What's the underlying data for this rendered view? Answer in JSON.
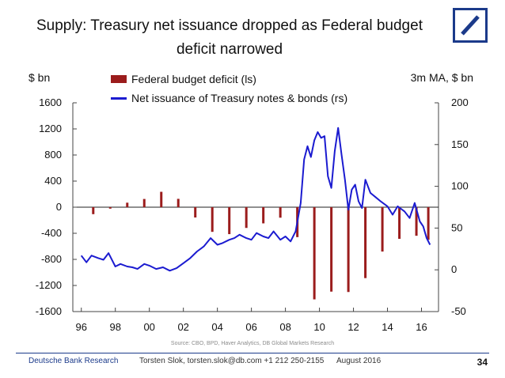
{
  "title_line1": "Supply: Treasury net issuance dropped as Federal budget",
  "title_line2": "deficit  narrowed",
  "left_axis_label": "$ bn",
  "right_axis_label": "3m MA, $ bn",
  "colors": {
    "bar": "#9b1c1c",
    "line": "#1b1bd0",
    "brand": "#1b3a8a"
  },
  "chart_data": {
    "type": "bar+line",
    "title": "Supply: Treasury net issuance dropped as Federal budget deficit narrowed",
    "xlabel": "",
    "x_ticks": [
      "96",
      "98",
      "00",
      "02",
      "04",
      "06",
      "08",
      "10",
      "12",
      "14",
      "16"
    ],
    "x_range": [
      1995.5,
      2017.0
    ],
    "left_axis": {
      "label": "$ bn",
      "range": [
        -1600,
        1600
      ],
      "ticks": [
        -1600,
        -1200,
        -800,
        -400,
        0,
        400,
        800,
        1200,
        1600
      ]
    },
    "right_axis": {
      "label": "3m MA, $ bn",
      "range": [
        -50,
        200
      ],
      "ticks": [
        -50,
        0,
        50,
        100,
        150,
        200
      ]
    },
    "legend": [
      "Federal budget deficit (ls)",
      "Net issuance of Treasury notes & bonds (rs)"
    ],
    "series": [
      {
        "name": "Federal budget deficit (ls)",
        "axis": "left",
        "type": "bar",
        "x": [
          1996.7,
          1997.7,
          1998.7,
          1999.7,
          2000.7,
          2001.7,
          2002.7,
          2003.7,
          2004.7,
          2005.7,
          2006.7,
          2007.7,
          2008.7,
          2009.7,
          2010.7,
          2011.7,
          2012.7,
          2013.7,
          2014.7,
          2015.7,
          2016.4
        ],
        "values": [
          -107,
          -22,
          69,
          126,
          236,
          128,
          -158,
          -378,
          -413,
          -318,
          -248,
          -161,
          -459,
          -1413,
          -1294,
          -1300,
          -1087,
          -680,
          -485,
          -438,
          -500
        ]
      },
      {
        "name": "Net issuance of Treasury notes & bonds (rs)",
        "axis": "right",
        "type": "line",
        "x": [
          1996.0,
          1996.3,
          1996.6,
          1997.0,
          1997.3,
          1997.6,
          1998.0,
          1998.3,
          1998.7,
          1999.0,
          1999.3,
          1999.7,
          2000.0,
          2000.4,
          2000.8,
          2001.2,
          2001.6,
          2002.0,
          2002.4,
          2002.8,
          2003.2,
          2003.6,
          2004.0,
          2004.3,
          2004.7,
          2005.0,
          2005.3,
          2005.7,
          2006.0,
          2006.3,
          2006.7,
          2007.0,
          2007.3,
          2007.7,
          2008.0,
          2008.3,
          2008.6,
          2008.9,
          2009.1,
          2009.3,
          2009.5,
          2009.7,
          2009.9,
          2010.1,
          2010.3,
          2010.5,
          2010.7,
          2010.9,
          2011.1,
          2011.3,
          2011.5,
          2011.7,
          2011.9,
          2012.1,
          2012.3,
          2012.5,
          2012.7,
          2013.0,
          2013.3,
          2013.6,
          2014.0,
          2014.3,
          2014.6,
          2015.0,
          2015.3,
          2015.6,
          2015.9,
          2016.1,
          2016.3,
          2016.5
        ],
        "values": [
          17,
          9,
          17,
          14,
          12,
          20,
          4,
          7,
          4,
          3,
          1,
          7,
          5,
          1,
          3,
          -1,
          2,
          8,
          14,
          22,
          28,
          38,
          30,
          32,
          36,
          38,
          42,
          38,
          36,
          44,
          40,
          38,
          46,
          36,
          40,
          34,
          46,
          80,
          132,
          148,
          135,
          155,
          165,
          158,
          160,
          112,
          98,
          142,
          170,
          138,
          108,
          72,
          96,
          102,
          82,
          74,
          108,
          92,
          87,
          82,
          76,
          66,
          76,
          70,
          62,
          80,
          58,
          52,
          38,
          30
        ]
      }
    ]
  },
  "source": "Source:  CBO, BPD, Haver Analytics, DB Global Markets Research",
  "footer": {
    "brand": "Deutsche Bank Research",
    "author": "Torsten Slok, torsten.slok@db.com  +1 212 250-2155",
    "date": "August 2016",
    "page": "34"
  }
}
